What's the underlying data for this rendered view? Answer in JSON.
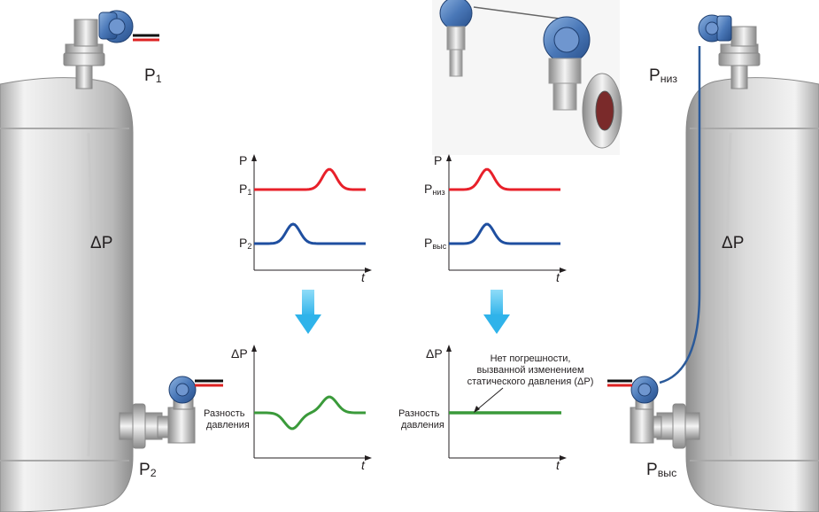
{
  "left_tank": {
    "p_top": {
      "main": "P",
      "sub": "1"
    },
    "p_bottom": {
      "main": "P",
      "sub": "2"
    },
    "delta": "ΔP"
  },
  "right_tank": {
    "p_top": {
      "main": "P",
      "sub": "низ"
    },
    "p_bottom": {
      "main": "P",
      "sub": "выс"
    },
    "delta": "ΔP"
  },
  "charts": {
    "left_top": {
      "y_axis": "P",
      "x_axis": "t",
      "series": [
        {
          "label_main": "P",
          "label_sub": "1",
          "color": "#e8202a"
        },
        {
          "label_main": "P",
          "label_sub": "2",
          "color": "#1f4fa0"
        }
      ]
    },
    "left_bottom": {
      "y_axis": "ΔP",
      "x_axis": "t",
      "label_line1": "Разность",
      "label_line2": "давления",
      "color": "#3a9a3a"
    },
    "right_top": {
      "y_axis": "P",
      "x_axis": "t",
      "series": [
        {
          "label_main": "P",
          "label_sub": "низ",
          "color": "#e8202a"
        },
        {
          "label_main": "P",
          "label_sub": "выс",
          "color": "#1f4fa0"
        }
      ]
    },
    "right_bottom": {
      "y_axis": "ΔP",
      "x_axis": "t",
      "label_line1": "Разность",
      "label_line2": "давления",
      "note_line1": "Нет погрешности,",
      "note_line2": "вызванной изменением",
      "note_line3": "статического давления (ΔP)",
      "color": "#3a9a3a"
    }
  },
  "colors": {
    "arrow": "#3cc1ef",
    "transmitter_blue": "#4a78b8",
    "tank_light": "#ececec",
    "tank_dark": "#9a9a9a"
  }
}
